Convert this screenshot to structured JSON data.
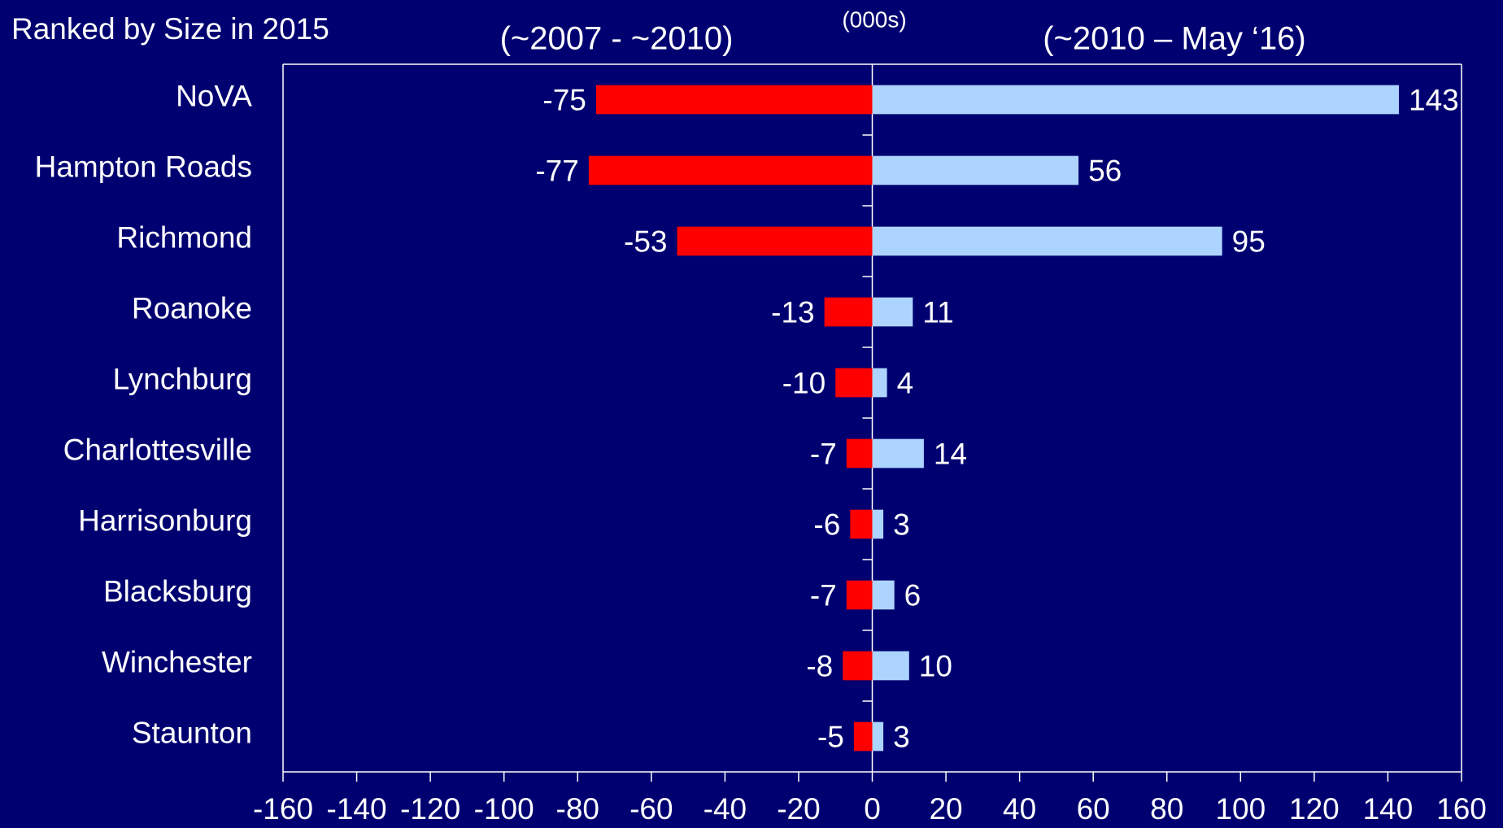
{
  "chart_data": {
    "type": "bar",
    "orientation": "horizontal",
    "title": "Ranked by Size in 2015",
    "unit_label": "(000s)",
    "categories": [
      "NoVA",
      "Hampton Roads",
      "Richmond",
      "Roanoke",
      "Lynchburg",
      "Charlottesville",
      "Harrisonburg",
      "Blacksburg",
      "Winchester",
      "Staunton"
    ],
    "series": [
      {
        "name": "(~2007 - ~2010)",
        "color": "#ff0000",
        "values": [
          -75,
          -77,
          -53,
          -13,
          -10,
          -7,
          -6,
          -7,
          -8,
          -5
        ]
      },
      {
        "name": "(~2010 – May ‘16)",
        "color": "#add4ff",
        "values": [
          143,
          56,
          95,
          11,
          4,
          14,
          3,
          6,
          10,
          3
        ]
      }
    ],
    "xlim": [
      -160,
      160
    ],
    "xticks": [
      -160,
      -140,
      -120,
      -100,
      -80,
      -60,
      -40,
      -20,
      0,
      20,
      40,
      60,
      80,
      100,
      120,
      140,
      160
    ],
    "grid": false
  }
}
